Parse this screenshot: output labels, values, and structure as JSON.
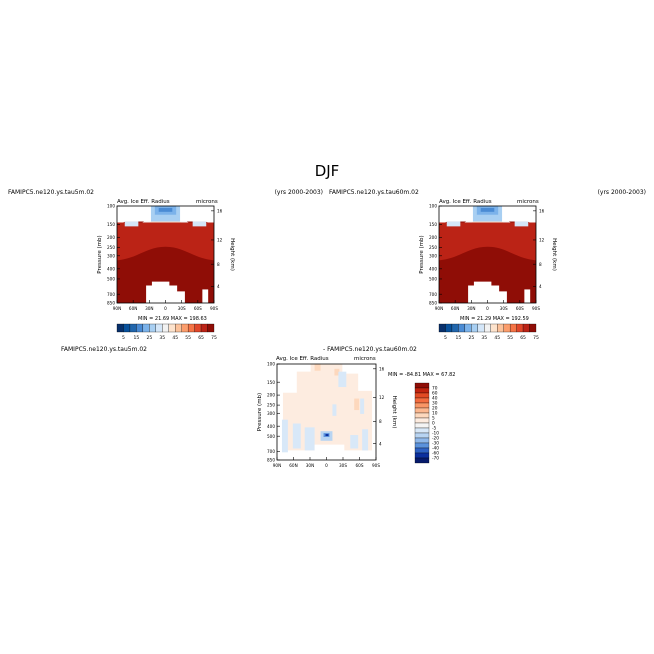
{
  "figure": {
    "title": "DJF"
  },
  "panels": [
    {
      "left_title": "FAMIPC5.ne120.ys.tau5m.02",
      "right_title": "(yrs 2000-2003)",
      "var_label": "Avg. Ice Eff. Radius",
      "units": "microns",
      "min_max": "MIN =  21.69   MAX = 198.63"
    },
    {
      "left_title": "FAMIPC5.ne120.ys.tau60m.02",
      "right_title": "(yrs 2000-2003)",
      "var_label": "Avg. Ice Eff. Radius",
      "units": "microns",
      "min_max": "MIN =  21.29   MAX = 192.59"
    },
    {
      "left_title": "FAMIPC5.ne120.ys.tau5m.02",
      "right_title": "- FAMIPC5.ne120.ys.tau60m.02",
      "var_label": "Avg. Ice Eff. Radius",
      "units": "microns",
      "min_max": "MIN = -84.81   MAX =  67.82"
    }
  ],
  "axes": {
    "ylabel": "Pressure (mb)",
    "ylabel_right": "Height (km)",
    "pressure_ticks": [
      "100",
      "150",
      "200",
      "250",
      "300",
      "400",
      "500",
      "700",
      "850"
    ],
    "height_ticks": [
      "16",
      "12",
      "8",
      "4"
    ],
    "lat_ticks": [
      "90N",
      "60N",
      "30N",
      "0",
      "30S",
      "60S",
      "90S"
    ]
  },
  "colorbars": {
    "abs_labels": [
      "5",
      "15",
      "25",
      "35",
      "45",
      "55",
      "65",
      "75"
    ],
    "abs_colors": [
      "#08306b",
      "#08519c",
      "#2166ac",
      "#4a8bd4",
      "#7bb2ea",
      "#a8cff2",
      "#d4e6f8",
      "#f2f2f2",
      "#fde3cd",
      "#fcc29b",
      "#fb9d6c",
      "#f57446",
      "#e0472a",
      "#bb2316",
      "#8f0d06"
    ],
    "diff_labels": [
      "70",
      "60",
      "40",
      "30",
      "20",
      "10",
      "5",
      "0",
      "-5",
      "-10",
      "-20",
      "-30",
      "-40",
      "-60",
      "-70"
    ],
    "diff_colors": [
      "#8f0d06",
      "#c1230f",
      "#e24a24",
      "#f36c3f",
      "#f99666",
      "#fcb890",
      "#fdd8bd",
      "#fdece0",
      "#f4f4f4",
      "#d8e8f8",
      "#b8d4f2",
      "#8fb8ea",
      "#5b92dc",
      "#2e62c4",
      "#0b2f9e",
      "#061a6b"
    ]
  },
  "chart_data": [
    {
      "type": "heatmap",
      "title": "Avg. Ice Eff. Radius",
      "xlabel": "",
      "ylabel": "Pressure (mb)",
      "x": [
        "90N",
        "60N",
        "30N",
        "0",
        "30S",
        "60S",
        "90S"
      ],
      "ylim": [
        850,
        100
      ],
      "units": "microns",
      "min": 21.69,
      "max": 198.63,
      "colorbar_levels": [
        5,
        15,
        25,
        35,
        45,
        55,
        65,
        75
      ]
    },
    {
      "type": "heatmap",
      "title": "Avg. Ice Eff. Radius",
      "xlabel": "",
      "ylabel": "Pressure (mb)",
      "x": [
        "90N",
        "60N",
        "30N",
        "0",
        "30S",
        "60S",
        "90S"
      ],
      "ylim": [
        850,
        100
      ],
      "units": "microns",
      "min": 21.29,
      "max": 192.59,
      "colorbar_levels": [
        5,
        15,
        25,
        35,
        45,
        55,
        65,
        75
      ]
    },
    {
      "type": "heatmap",
      "title": "Avg. Ice Eff. Radius",
      "xlabel": "",
      "ylabel": "Pressure (mb)",
      "x": [
        "90N",
        "60N",
        "30N",
        "0",
        "30S",
        "60S",
        "90S"
      ],
      "ylim": [
        850,
        100
      ],
      "units": "microns",
      "min": -84.81,
      "max": 67.82,
      "colorbar_levels": [
        70,
        60,
        40,
        30,
        20,
        10,
        5,
        0,
        -5,
        -10,
        -20,
        -30,
        -40,
        -60,
        -70
      ]
    }
  ]
}
